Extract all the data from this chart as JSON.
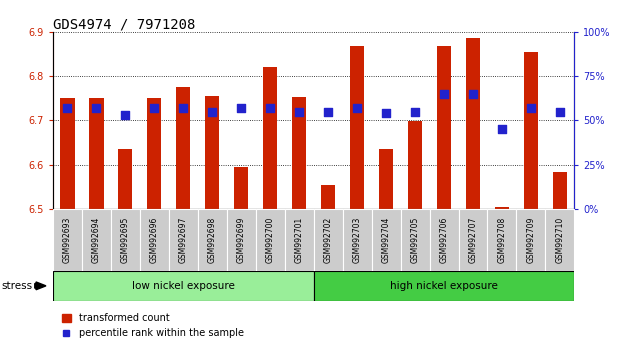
{
  "title": "GDS4974 / 7971208",
  "samples": [
    "GSM992693",
    "GSM992694",
    "GSM992695",
    "GSM992696",
    "GSM992697",
    "GSM992698",
    "GSM992699",
    "GSM992700",
    "GSM992701",
    "GSM992702",
    "GSM992703",
    "GSM992704",
    "GSM992705",
    "GSM992706",
    "GSM992707",
    "GSM992708",
    "GSM992709",
    "GSM992710"
  ],
  "transformed_count": [
    6.75,
    6.75,
    6.635,
    6.75,
    6.775,
    6.755,
    6.595,
    6.82,
    6.753,
    6.555,
    6.868,
    6.635,
    6.698,
    6.868,
    6.885,
    6.505,
    6.855,
    6.583
  ],
  "percentile_rank": [
    57,
    57,
    53,
    57,
    57,
    55,
    57,
    57,
    55,
    55,
    57,
    54,
    55,
    65,
    65,
    45,
    57,
    55
  ],
  "ylim_left": [
    6.5,
    6.9
  ],
  "ylim_right": [
    0,
    100
  ],
  "yticks_left": [
    6.5,
    6.6,
    6.7,
    6.8,
    6.9
  ],
  "yticks_right": [
    0,
    25,
    50,
    75,
    100
  ],
  "ytick_right_labels": [
    "0%",
    "25%",
    "50%",
    "75%",
    "100%"
  ],
  "bar_color": "#cc2200",
  "dot_color": "#2222cc",
  "group1_label": "low nickel exposure",
  "group2_label": "high nickel exposure",
  "group1_color": "#99ee99",
  "group2_color": "#44cc44",
  "group1_count": 9,
  "stress_label": "stress",
  "legend_bar_label": "transformed count",
  "legend_dot_label": "percentile rank within the sample",
  "xlabel_color": "#cc2200",
  "ylabel_right_color": "#2222cc",
  "title_fontsize": 10,
  "bar_width": 0.5,
  "dot_size": 28,
  "cell_color": "#cccccc"
}
